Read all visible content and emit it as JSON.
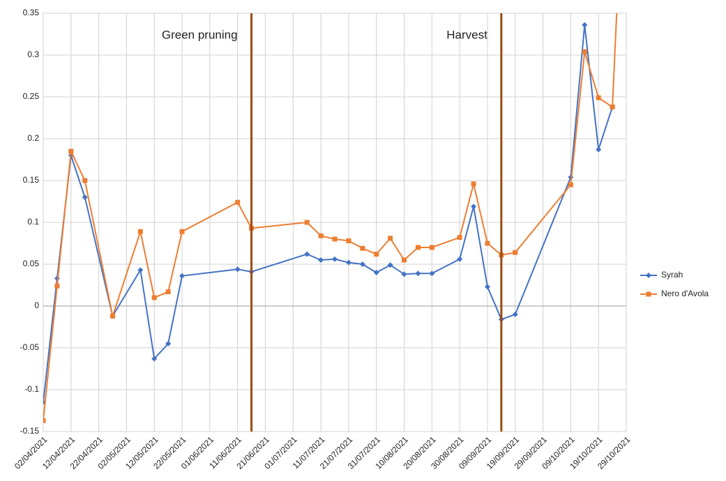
{
  "chart_data": {
    "type": "line",
    "x": [
      "02/04/2021",
      "07/04/2021",
      "12/04/2021",
      "17/04/2021",
      "27/04/2021",
      "07/05/2021",
      "12/05/2021",
      "17/05/2021",
      "22/05/2021",
      "11/06/2021",
      "16/06/2021",
      "06/07/2021",
      "11/07/2021",
      "16/07/2021",
      "21/07/2021",
      "26/07/2021",
      "31/07/2021",
      "05/08/2021",
      "10/08/2021",
      "15/08/2021",
      "20/08/2021",
      "30/08/2021",
      "04/09/2021",
      "09/09/2021",
      "14/09/2021",
      "19/09/2021",
      "09/10/2021",
      "14/10/2021",
      "19/10/2021",
      "24/10/2021",
      "29/10/2021"
    ],
    "series": [
      {
        "name": "Syrah",
        "color": "#4472c4",
        "marker": "diamond",
        "values": [
          -0.115,
          0.033,
          0.18,
          0.13,
          -0.012,
          0.043,
          -0.063,
          -0.045,
          0.036,
          0.044,
          0.041,
          0.062,
          0.055,
          0.056,
          0.052,
          0.05,
          0.04,
          0.049,
          0.038,
          0.039,
          0.039,
          0.056,
          0.119,
          0.023,
          -0.016,
          -0.01,
          0.154,
          0.336,
          0.187,
          0.238,
          null
        ]
      },
      {
        "name": "Nero d'Avola",
        "color": "#ed7d31",
        "marker": "square",
        "values": [
          -0.137,
          0.024,
          0.185,
          0.15,
          -0.012,
          0.089,
          0.01,
          0.017,
          0.089,
          0.124,
          0.093,
          0.1,
          0.084,
          0.08,
          0.078,
          0.069,
          0.062,
          0.081,
          0.055,
          0.07,
          0.07,
          0.082,
          0.146,
          0.075,
          0.061,
          0.064,
          0.145,
          0.304,
          0.249,
          0.238,
          0.6
        ]
      }
    ],
    "xlim": [
      "02/04/2021",
      "29/10/2021"
    ],
    "xticks": [
      "02/04/2021",
      "12/04/2021",
      "22/04/2021",
      "02/05/2021",
      "12/05/2021",
      "22/05/2021",
      "01/06/2021",
      "11/06/2021",
      "21/06/2021",
      "01/07/2021",
      "11/07/2021",
      "21/07/2021",
      "31/07/2021",
      "10/08/2021",
      "20/08/2021",
      "30/08/2021",
      "09/09/2021",
      "19/09/2021",
      "29/09/2021",
      "09/10/2021",
      "19/10/2021",
      "29/10/2021"
    ],
    "ylim": [
      -0.15,
      0.35
    ],
    "yticks": [
      -0.15,
      -0.1,
      -0.05,
      0,
      0.05,
      0.1,
      0.15,
      0.2,
      0.25,
      0.3,
      0.35
    ],
    "grid": true,
    "legend": "right",
    "annotations": [
      {
        "text": "Green pruning",
        "x": "16/06/2021",
        "color": "#9c4a10"
      },
      {
        "text": "Harvest",
        "x": "14/09/2021",
        "color": "#9c4a10"
      }
    ]
  }
}
